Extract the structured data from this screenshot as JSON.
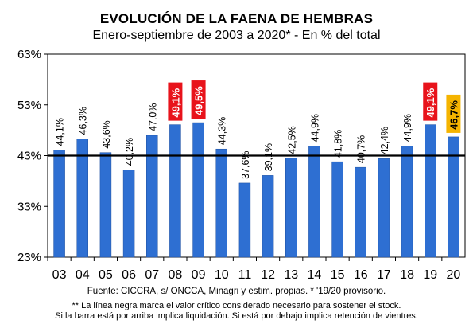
{
  "title": "EVOLUCIÓN DE LA FAENA DE HEMBRAS",
  "subtitle": "Enero-septiembre de 2003 a 2020* - En % del total",
  "source": "Fuente: CICCRA, s/ ONCCA, Minagri y estim. propias. * '19/20  provisorio.",
  "note_line1": "** La línea negra marca el valor crítico considerado necesario para sostener el stock.",
  "note_line2": "Si la barra está por arriba implica liquidación. Si está por debajo implica retención de vientres.",
  "chart_data": {
    "type": "bar",
    "categories": [
      "03",
      "04",
      "05",
      "06",
      "07",
      "08",
      "09",
      "10",
      "11",
      "12",
      "13",
      "14",
      "15",
      "16",
      "17",
      "18",
      "19",
      "20"
    ],
    "values": [
      44.1,
      46.3,
      43.6,
      40.2,
      47.0,
      49.1,
      49.5,
      44.3,
      37.6,
      39.1,
      42.5,
      44.9,
      41.8,
      40.7,
      42.4,
      44.9,
      49.1,
      46.7
    ],
    "labels": [
      "44,1%",
      "46,3%",
      "43,6%",
      "40,2%",
      "47,0%",
      "49,1%",
      "49,5%",
      "44,3%",
      "37,6%",
      "39,1%",
      "42,5%",
      "44,9%",
      "41,8%",
      "40,7%",
      "42,4%",
      "44,9%",
      "49,1%",
      "46,7%"
    ],
    "label_styles": [
      "plain",
      "plain",
      "plain",
      "plain",
      "plain",
      "red",
      "red",
      "plain",
      "plain",
      "plain",
      "plain",
      "plain",
      "plain",
      "plain",
      "plain",
      "plain",
      "red",
      "yellow"
    ],
    "ylim": [
      23,
      63
    ],
    "yticks": [
      23,
      33,
      43,
      53,
      63
    ],
    "ytick_labels": [
      "23%",
      "33%",
      "43%",
      "53%",
      "63%"
    ],
    "reference_line": 43,
    "grid": false,
    "colors": {
      "bar": "#2e6fd2",
      "bar_edge": "#1e4f9e",
      "reference_line": "#000000",
      "highlight_red": "#e8131b",
      "highlight_yellow": "#f5b400"
    }
  }
}
